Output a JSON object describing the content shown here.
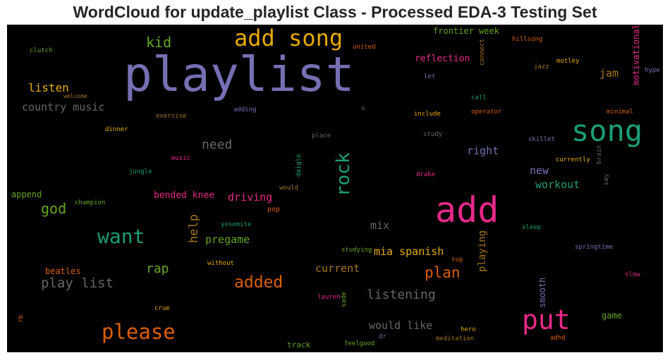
{
  "title": "WordCloud for update_playlist Class - Processed EDA-3 Testing Set",
  "words": {
    "playlist": "playlist",
    "add": "add",
    "add_song": "add song",
    "song": "song",
    "put": "put",
    "please": "please",
    "want": "want",
    "rock": "rock",
    "added": "added",
    "kid": "kid",
    "listen": "listen",
    "country_music": "country music",
    "need": "need",
    "god": "god",
    "plan": "plan",
    "play_list": "play list",
    "listening": "listening",
    "rap": "rap",
    "right": "right",
    "new": "new",
    "workout": "workout",
    "jam": "jam",
    "help": "help",
    "pregame": "pregame",
    "driving": "driving",
    "mix": "mix",
    "mia_spanish": "mia spanish",
    "current": "current",
    "would_like": "would like",
    "playing": "playing",
    "bended_knee": "bended knee",
    "reflection": "reflection",
    "frontier_week": "frontier week",
    "motivational": "motivational",
    "smooth": "smooth",
    "beatles": "beatles",
    "append": "append",
    "game": "game",
    "clutch": "clutch",
    "welcome": "welcome",
    "exercise": "exercise",
    "dinner": "dinner",
    "adding": "adding",
    "u": "u",
    "include": "include",
    "operator": "operator",
    "call": "call",
    "let": "let",
    "united": "united",
    "connect": "connect",
    "hillsong": "hillsong",
    "jazz": "jazz",
    "motley": "motley",
    "hype": "hype",
    "minimal": "minimal",
    "skillet": "skillet",
    "brain": "brain",
    "currently": "currently",
    "say": "say",
    "study": "study",
    "place": "place",
    "drake": "drake",
    "music": "music",
    "jungle": "jungle",
    "daigle": "daigle",
    "would": "would",
    "champion": "champion",
    "pop": "pop",
    "yosemite": "yosemite",
    "sleep": "sleep",
    "springtime": "springtime",
    "studying": "studying",
    "top": "top",
    "without": "without",
    "slow": "slow",
    "lauren": "lauren",
    "sade": "sade",
    "crue": "crue",
    "rb": "rb",
    "hero": "hero",
    "adhd": "adhd",
    "dr": "dr",
    "meditation": "meditation",
    "track": "track",
    "feelgood": "feelgood"
  },
  "colors": {
    "purple": "#7570b3",
    "orange": "#d95f02",
    "gold": "#e6ab02",
    "teal": "#1b9e77",
    "pink": "#e7298a",
    "green": "#66a61e",
    "brown": "#a6761d",
    "gray": "#666666"
  }
}
